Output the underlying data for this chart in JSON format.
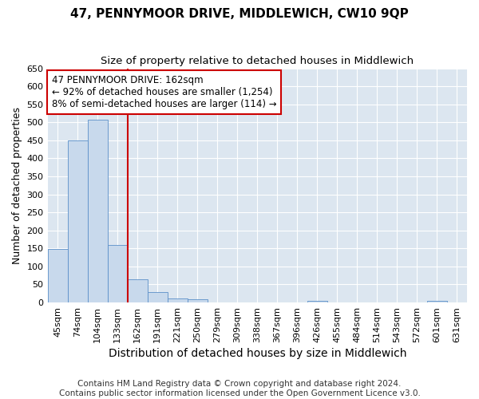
{
  "title": "47, PENNYMOOR DRIVE, MIDDLEWICH, CW10 9QP",
  "subtitle": "Size of property relative to detached houses in Middlewich",
  "xlabel": "Distribution of detached houses by size in Middlewich",
  "ylabel": "Number of detached properties",
  "bin_labels": [
    "45sqm",
    "74sqm",
    "104sqm",
    "133sqm",
    "162sqm",
    "191sqm",
    "221sqm",
    "250sqm",
    "279sqm",
    "309sqm",
    "338sqm",
    "367sqm",
    "396sqm",
    "426sqm",
    "455sqm",
    "484sqm",
    "514sqm",
    "543sqm",
    "572sqm",
    "601sqm",
    "631sqm"
  ],
  "bar_heights": [
    148,
    450,
    508,
    160,
    65,
    30,
    12,
    8,
    0,
    0,
    0,
    0,
    0,
    5,
    0,
    0,
    0,
    0,
    0,
    5,
    0
  ],
  "bar_color": "#c8d9ec",
  "bar_edge_color": "#5b8fc9",
  "vline_color": "#cc0000",
  "vline_index": 4,
  "annotation_text": "47 PENNYMOOR DRIVE: 162sqm\n← 92% of detached houses are smaller (1,254)\n8% of semi-detached houses are larger (114) →",
  "annotation_box_color": "#ffffff",
  "annotation_box_edge_color": "#cc0000",
  "ylim": [
    0,
    650
  ],
  "yticks": [
    0,
    50,
    100,
    150,
    200,
    250,
    300,
    350,
    400,
    450,
    500,
    550,
    600,
    650
  ],
  "footnote": "Contains HM Land Registry data © Crown copyright and database right 2024.\nContains public sector information licensed under the Open Government Licence v3.0.",
  "fig_background_color": "#ffffff",
  "plot_background_color": "#dce6f0",
  "grid_color": "#ffffff",
  "title_fontsize": 11,
  "subtitle_fontsize": 9.5,
  "ylabel_fontsize": 9,
  "xlabel_fontsize": 10,
  "tick_fontsize": 8,
  "annotation_fontsize": 8.5,
  "footnote_fontsize": 7.5
}
